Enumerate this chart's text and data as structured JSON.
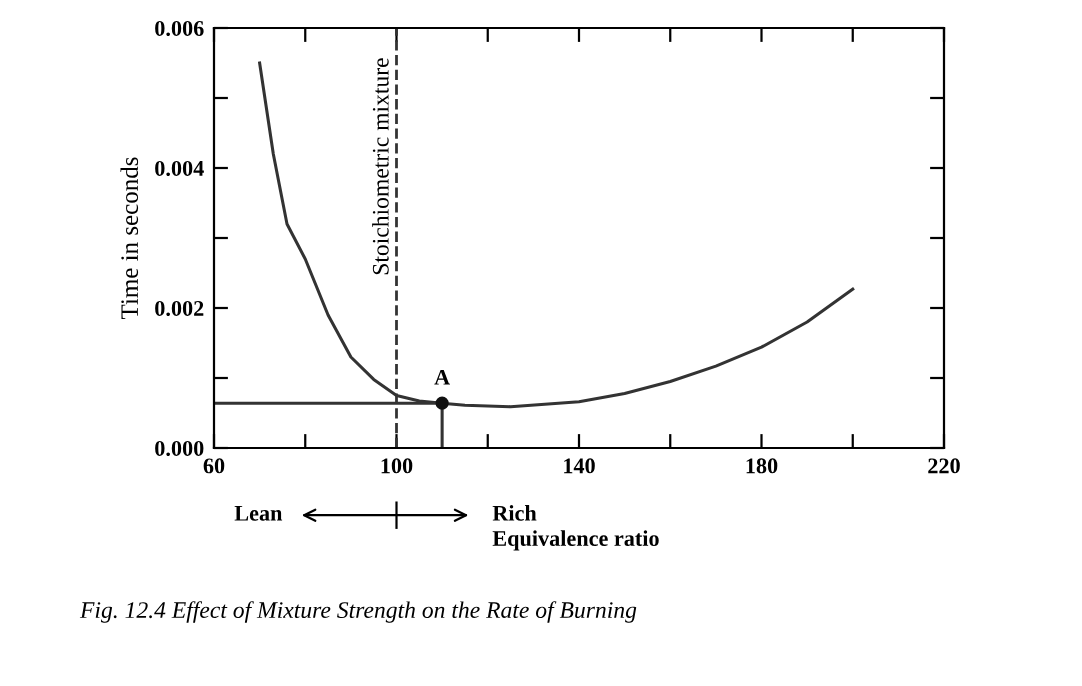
{
  "chart_data": {
    "type": "line",
    "xlabel": "Equivalence ratio",
    "ylabel": "Time in seconds",
    "xlim": [
      60,
      220
    ],
    "ylim": [
      0,
      0.006
    ],
    "xticks": [
      60,
      {
        "value": 80,
        "label": null
      },
      100,
      {
        "value": 120,
        "label": null
      },
      140,
      {
        "value": 160,
        "label": null
      },
      180,
      {
        "value": 200,
        "label": null
      },
      220
    ],
    "yticks": [
      {
        "value": 0,
        "label": "0.000"
      },
      {
        "value": 0.001,
        "label": null
      },
      {
        "value": 0.002,
        "label": "0.002"
      },
      {
        "value": 0.003,
        "label": null
      },
      {
        "value": 0.004,
        "label": "0.004"
      },
      {
        "value": 0.005,
        "label": null
      },
      {
        "value": 0.006,
        "label": "0.006"
      }
    ],
    "grid": false,
    "series": [
      {
        "color": "#333333",
        "x": [
          70,
          73,
          76,
          80,
          85,
          90,
          95,
          100,
          105,
          110,
          115,
          125,
          140,
          150,
          160,
          170,
          180,
          190,
          200
        ],
        "values": [
          0.0055,
          0.0042,
          0.0032,
          0.0027,
          0.0019,
          0.0013,
          0.00098,
          0.00075,
          0.00067,
          0.00064,
          0.00061,
          0.00059,
          0.00066,
          0.00078,
          0.00095,
          0.00117,
          0.00144,
          0.0018,
          0.00227
        ]
      },
      {
        "type": "line",
        "color": "#333333",
        "x": [
          60,
          110,
          110
        ],
        "values": [
          0.00064,
          0.00064,
          0
        ]
      },
      {
        "type": "scatter",
        "color": "#111111",
        "x": [
          110
        ],
        "values": [
          0.00064
        ],
        "marker": "circle"
      }
    ],
    "ref_lines": [
      {
        "axis": "x",
        "value": 100,
        "label": "Stoichiometric mixture",
        "line_style": "dashed",
        "color": "#333333"
      }
    ],
    "annotations": [
      {
        "text": "A",
        "x": 110,
        "y": 0.00064
      },
      "Lean",
      "Rich",
      "Fig. 12.4 Effect of Mixture Strength on the Rate of Burning"
    ]
  }
}
